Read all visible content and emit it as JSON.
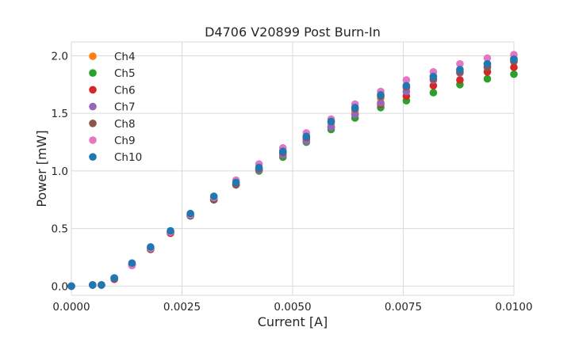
{
  "chart_data": {
    "type": "scatter",
    "title": "D4706 V20899 Post Burn-In",
    "xlabel": "Current [A]",
    "ylabel": "Power [mW]",
    "xlim": [
      0.0,
      0.01
    ],
    "ylim": [
      -0.08,
      2.12
    ],
    "grid": true,
    "legend_position": "top-left",
    "x_ticks": [
      {
        "value": 0.0,
        "label": "0.0000"
      },
      {
        "value": 0.0025,
        "label": "0.0025"
      },
      {
        "value": 0.005,
        "label": "0.0050"
      },
      {
        "value": 0.0075,
        "label": "0.0075"
      },
      {
        "value": 0.01,
        "label": "0.0100"
      }
    ],
    "y_ticks": [
      {
        "value": 0.0,
        "label": "0.0"
      },
      {
        "value": 0.5,
        "label": "0.5"
      },
      {
        "value": 1.0,
        "label": "1.0"
      },
      {
        "value": 1.5,
        "label": "1.5"
      },
      {
        "value": 2.0,
        "label": "2.0"
      }
    ],
    "x": [
      0.0,
      0.00048,
      0.00068,
      0.00097,
      0.00137,
      0.00179,
      0.00224,
      0.00269,
      0.00322,
      0.00372,
      0.00424,
      0.00478,
      0.00531,
      0.00587,
      0.00641,
      0.00699,
      0.00757,
      0.00818,
      0.00878,
      0.0094,
      0.01
    ],
    "series": [
      {
        "name": "Ch4",
        "color": "#ff7f0e",
        "values": [
          0.0,
          0.01,
          0.01,
          0.07,
          0.19,
          0.33,
          0.47,
          0.62,
          0.76,
          0.89,
          1.02,
          1.16,
          1.29,
          1.41,
          1.52,
          1.63,
          1.72,
          1.82,
          1.88,
          1.93,
          1.98
        ]
      },
      {
        "name": "Ch5",
        "color": "#2ca02c",
        "values": [
          0.0,
          0.01,
          0.01,
          0.06,
          0.18,
          0.32,
          0.46,
          0.61,
          0.75,
          0.88,
          1.0,
          1.12,
          1.25,
          1.36,
          1.46,
          1.55,
          1.61,
          1.68,
          1.75,
          1.8,
          1.84
        ]
      },
      {
        "name": "Ch6",
        "color": "#d62728",
        "values": [
          0.0,
          0.01,
          0.01,
          0.06,
          0.18,
          0.32,
          0.46,
          0.61,
          0.75,
          0.88,
          1.01,
          1.14,
          1.27,
          1.38,
          1.49,
          1.58,
          1.65,
          1.74,
          1.79,
          1.86,
          1.9
        ]
      },
      {
        "name": "Ch7",
        "color": "#9467bd",
        "values": [
          0.0,
          0.01,
          0.01,
          0.07,
          0.19,
          0.33,
          0.47,
          0.61,
          0.75,
          0.88,
          1.01,
          1.14,
          1.26,
          1.38,
          1.49,
          1.59,
          1.69,
          1.79,
          1.85,
          1.91,
          1.96
        ]
      },
      {
        "name": "Ch8",
        "color": "#8c564b",
        "values": [
          0.0,
          0.01,
          0.01,
          0.07,
          0.19,
          0.32,
          0.47,
          0.61,
          0.75,
          0.88,
          1.02,
          1.16,
          1.29,
          1.43,
          1.54,
          1.65,
          1.73,
          1.8,
          1.86,
          1.9,
          1.95
        ]
      },
      {
        "name": "Ch9",
        "color": "#e377c2",
        "values": [
          0.0,
          0.01,
          0.01,
          0.07,
          0.18,
          0.33,
          0.47,
          0.62,
          0.77,
          0.92,
          1.06,
          1.2,
          1.33,
          1.45,
          1.58,
          1.69,
          1.79,
          1.86,
          1.93,
          1.98,
          2.01
        ]
      },
      {
        "name": "Ch10",
        "color": "#1f77b4",
        "values": [
          0.0,
          0.01,
          0.01,
          0.07,
          0.2,
          0.34,
          0.48,
          0.63,
          0.78,
          0.9,
          1.03,
          1.17,
          1.3,
          1.43,
          1.55,
          1.66,
          1.74,
          1.82,
          1.88,
          1.93,
          1.97
        ]
      }
    ]
  }
}
